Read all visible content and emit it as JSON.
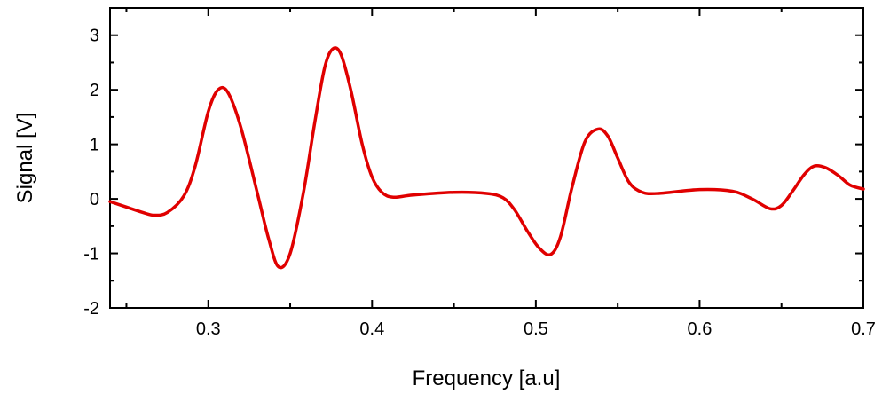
{
  "chart_data": {
    "type": "line",
    "title": "",
    "xlabel": "Frequency [a.u]",
    "ylabel": "Signal [V]",
    "xlim": [
      0.24,
      0.7
    ],
    "ylim": [
      -2,
      3.5
    ],
    "xticks": [
      0.3,
      0.4,
      0.5,
      0.6,
      0.7
    ],
    "xtick_labels": [
      "0.3",
      "0.4",
      "0.5",
      "0.6",
      "0.7"
    ],
    "yticks": [
      -2,
      -1,
      0,
      1,
      2,
      3
    ],
    "ytick_labels": [
      "-2",
      "-1",
      "0",
      "1",
      "2",
      "3"
    ],
    "grid": false,
    "legend": "none",
    "series": [
      {
        "color": "#e00000",
        "x": [
          0.24,
          0.25,
          0.26,
          0.267,
          0.275,
          0.285,
          0.292,
          0.3,
          0.306,
          0.312,
          0.32,
          0.33,
          0.337,
          0.343,
          0.35,
          0.358,
          0.365,
          0.371,
          0.376,
          0.381,
          0.387,
          0.394,
          0.4,
          0.406,
          0.413,
          0.425,
          0.45,
          0.47,
          0.48,
          0.487,
          0.495,
          0.502,
          0.509,
          0.515,
          0.522,
          0.53,
          0.538,
          0.544,
          0.55,
          0.557,
          0.565,
          0.575,
          0.6,
          0.62,
          0.632,
          0.643,
          0.65,
          0.657,
          0.664,
          0.67,
          0.677,
          0.685,
          0.692,
          0.7
        ],
        "y": [
          -0.05,
          -0.15,
          -0.25,
          -0.3,
          -0.25,
          0.05,
          0.6,
          1.6,
          2.0,
          1.95,
          1.3,
          0.1,
          -0.75,
          -1.25,
          -1.0,
          0.1,
          1.4,
          2.4,
          2.75,
          2.65,
          2.0,
          1.0,
          0.4,
          0.12,
          0.03,
          0.07,
          0.12,
          0.1,
          0.02,
          -0.2,
          -0.6,
          -0.9,
          -1.02,
          -0.7,
          0.2,
          1.05,
          1.28,
          1.15,
          0.75,
          0.3,
          0.12,
          0.1,
          0.17,
          0.14,
          0.0,
          -0.18,
          -0.12,
          0.15,
          0.45,
          0.6,
          0.57,
          0.42,
          0.25,
          0.18
        ]
      }
    ]
  }
}
